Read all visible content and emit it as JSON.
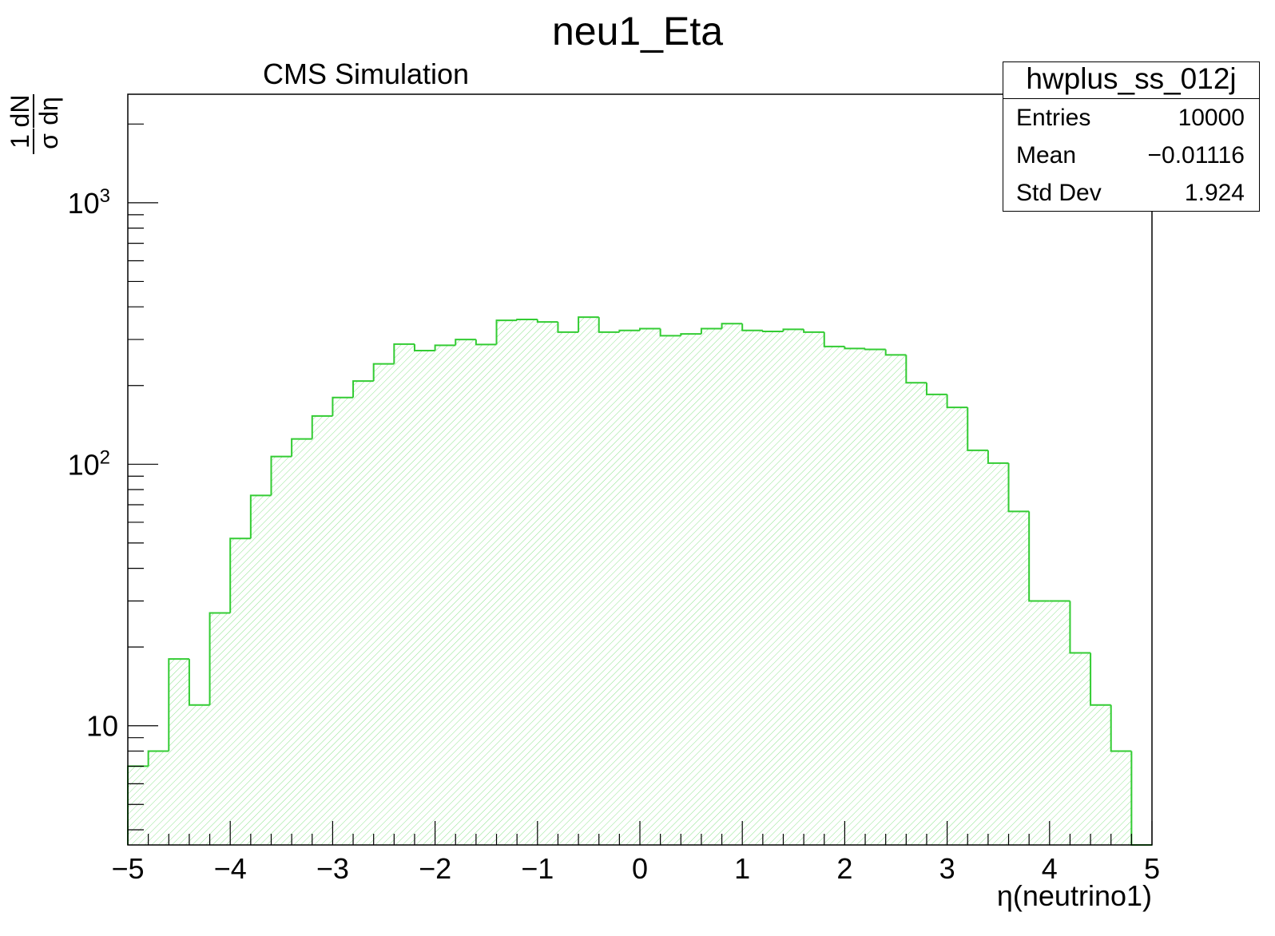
{
  "title": "neu1_Eta",
  "annotation": "CMS Simulation",
  "stats": {
    "name": "hwplus_ss_012j",
    "rows": [
      {
        "label": "Entries",
        "value": "10000"
      },
      {
        "label": "Mean",
        "value": "−0.01116"
      },
      {
        "label": "Std Dev",
        "value": "1.924"
      }
    ]
  },
  "chart_data": {
    "type": "histogram",
    "title": "neu1_Eta",
    "xlabel": "η(neutrino1)",
    "ylabel": "1/σ dN/dη",
    "xlim": [
      -5,
      5
    ],
    "ylim": [
      3.5,
      2600
    ],
    "yscale": "log",
    "grid": false,
    "bin_edges_start": -5,
    "bin_width": 0.2,
    "values": [
      7,
      8,
      18,
      12,
      27,
      52,
      76,
      107,
      125,
      153,
      180,
      208,
      242,
      288,
      272,
      285,
      300,
      287,
      355,
      358,
      350,
      320,
      365,
      320,
      325,
      330,
      310,
      315,
      330,
      345,
      325,
      322,
      328,
      320,
      282,
      277,
      275,
      262,
      205,
      185,
      165,
      113,
      101,
      66,
      30,
      30,
      19,
      12,
      8,
      0
    ],
    "xticks": [
      "−5",
      "−4",
      "−3",
      "−2",
      "−1",
      "0",
      "1",
      "2",
      "3",
      "4",
      "5"
    ],
    "yticks": [
      10,
      100,
      1000
    ],
    "line_color": "#33cc33",
    "fill_color": "#33cc33"
  }
}
